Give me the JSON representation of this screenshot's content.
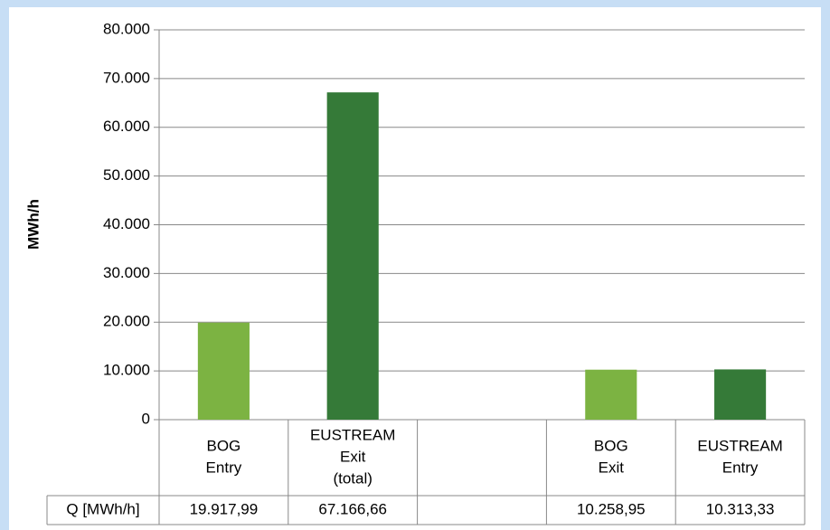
{
  "chart_data": {
    "type": "bar",
    "y_axis_label": "MWh/h",
    "categories": [
      [
        "BOG",
        "Entry"
      ],
      [
        "EUSTREAM",
        "Exit",
        "(total)"
      ],
      null,
      [
        "BOG",
        "Exit"
      ],
      [
        "EUSTREAM",
        "Entry"
      ]
    ],
    "values": [
      19917.99,
      67166.66,
      null,
      10258.95,
      10313.33
    ],
    "value_labels": [
      "19.917,99",
      "67.166,66",
      null,
      "10.258,95",
      "10.313,33"
    ],
    "colors": [
      "#7cb342",
      "#357a38",
      null,
      "#7cb342",
      "#357a38"
    ],
    "table_row_label": "Q [MWh/h]",
    "ylim": [
      0,
      80000
    ],
    "yticks": [
      0,
      {
        "value": 10000,
        "label": "10.000"
      },
      {
        "value": 20000,
        "label": "20.000"
      },
      {
        "value": 30000,
        "label": "30.000"
      },
      {
        "value": 40000,
        "label": "40.000"
      },
      {
        "value": 50000,
        "label": "50.000"
      },
      {
        "value": 60000,
        "label": "60.000"
      },
      {
        "value": 70000,
        "label": "70.000"
      },
      {
        "value": 80000,
        "label": "80.000"
      }
    ],
    "grid": true
  }
}
